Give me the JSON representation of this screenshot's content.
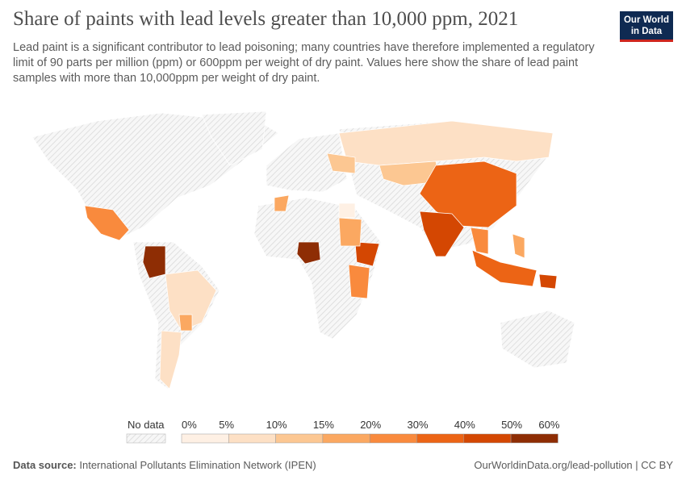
{
  "title": "Share of paints with lead levels greater than 10,000 ppm, 2021",
  "subtitle": "Lead paint is a significant contributor to lead poisoning; many countries have therefore implemented a regulatory limit of 90 parts per million (ppm) or 600ppm per weight of dry paint. Values here show the share of lead paint samples with more than 10,000ppm per weight of dry paint.",
  "logo": {
    "line1": "Our World",
    "line2": "in Data"
  },
  "legend": {
    "no_data": "No data",
    "ticks": [
      "0%",
      "5%",
      "10%",
      "15%",
      "20%",
      "30%",
      "40%",
      "50%",
      "60%"
    ],
    "colors": [
      "#fef0e4",
      "#fde0c5",
      "#fcc792",
      "#fba861",
      "#f98a3d",
      "#ec6415",
      "#d44702",
      "#8e2d04"
    ],
    "no_data_color": "#e8e8e8"
  },
  "regions": [
    {
      "id": "russia",
      "bin": 1
    },
    {
      "id": "kazakhstan",
      "bin": 2
    },
    {
      "id": "china",
      "bin": 5
    },
    {
      "id": "india",
      "bin": 6
    },
    {
      "id": "indonesia",
      "bin": 5
    },
    {
      "id": "colombia",
      "bin": 7
    },
    {
      "id": "nigeria",
      "bin": 7
    },
    {
      "id": "mexico",
      "bin": 4
    },
    {
      "id": "brazil",
      "bin": 1
    },
    {
      "id": "ethiopia",
      "bin": 6
    },
    {
      "id": "sudan",
      "bin": 3
    },
    {
      "id": "kenya-tanzania",
      "bin": 4
    },
    {
      "id": "paraguay",
      "bin": 3
    },
    {
      "id": "thailand-vietnam",
      "bin": 4
    },
    {
      "id": "philippines",
      "bin": 3
    },
    {
      "id": "papua-new-guinea",
      "bin": 6
    },
    {
      "id": "morocco",
      "bin": 3
    },
    {
      "id": "ukraine-belarus",
      "bin": 2
    },
    {
      "id": "argentina",
      "bin": 1
    },
    {
      "id": "egypt",
      "bin": 0
    }
  ],
  "footer": {
    "source_label": "Data source:",
    "source": "International Pollutants Elimination Network (IPEN)",
    "url": "OurWorldinData.org/lead-pollution | CC BY"
  }
}
